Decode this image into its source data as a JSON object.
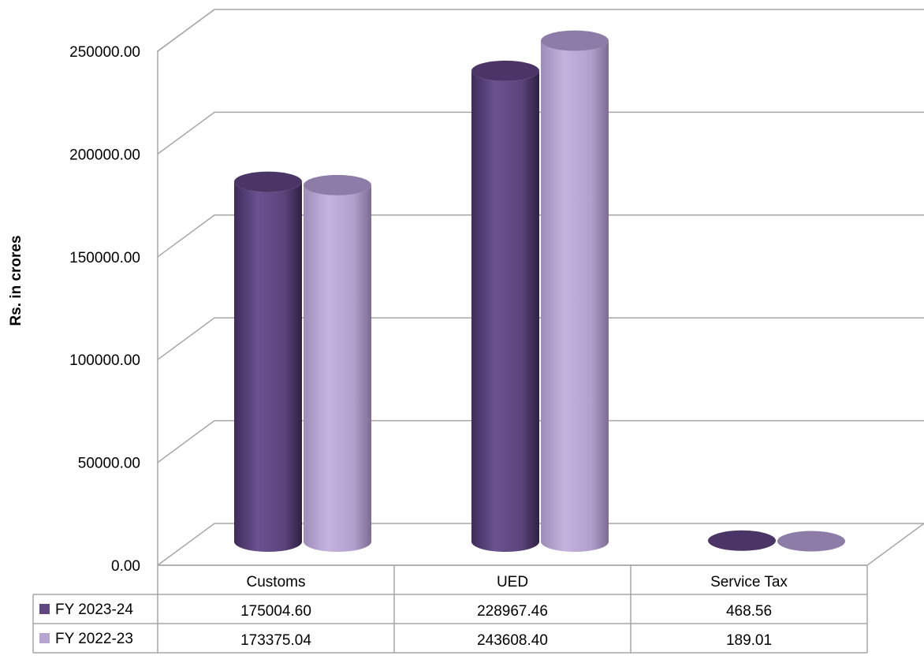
{
  "chart_data": {
    "type": "bar",
    "style": "3d-cylinder",
    "title": "",
    "xlabel": "",
    "ylabel": "Rs. in crores",
    "ylim": [
      0,
      250000
    ],
    "yticks": [
      "0.00",
      "50000.00",
      "100000.00",
      "150000.00",
      "200000.00",
      "250000.00"
    ],
    "ytick_values": [
      0,
      50000,
      100000,
      150000,
      200000,
      250000
    ],
    "grid": true,
    "legend": "data-table",
    "categories": [
      "Customs",
      "UED",
      "Service Tax"
    ],
    "series": [
      {
        "name": "FY 2023-24",
        "color": "#5f4780",
        "values": [
          175004.6,
          228967.46,
          468.56
        ],
        "labels": [
          "175004.60",
          "228967.46",
          "468.56"
        ]
      },
      {
        "name": "FY 2022-23",
        "color": "#b6a5d0",
        "values": [
          173375.04,
          243608.4,
          189.01
        ],
        "labels": [
          "173375.04",
          "243608.40",
          "189.01"
        ]
      }
    ]
  }
}
